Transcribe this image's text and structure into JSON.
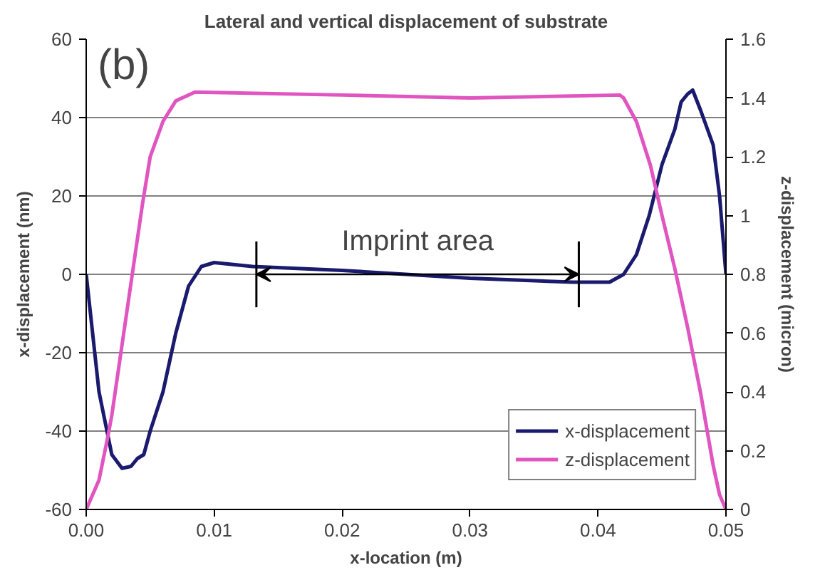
{
  "chart_data": {
    "type": "line",
    "title": "Lateral and vertical displacement of substrate",
    "xlabel": "x-location (m)",
    "ylabel": "x-displacement (nm)",
    "y2label": "z-displacement (micron)",
    "annotations": [
      "(b)",
      "Imprint area"
    ],
    "ref_lines": [
      {
        "axis": "x",
        "value": 0.0133,
        "color": "#000000"
      },
      {
        "axis": "x",
        "value": 0.0385,
        "color": "#000000"
      }
    ],
    "series": [
      {
        "name": "x-displacement",
        "color": "#1a1a6e",
        "x": [
          0,
          0.001,
          0.002,
          0.0028,
          0.0035,
          0.004,
          0.0045,
          0.005,
          0.006,
          0.007,
          0.008,
          0.009,
          0.01,
          0.013,
          0.02,
          0.03,
          0.038,
          0.0409,
          0.042,
          0.043,
          0.044,
          0.045,
          0.046,
          0.0465,
          0.047,
          0.0474,
          0.048,
          0.049,
          0.0495,
          0.05
        ],
        "values": [
          0,
          -30,
          -46,
          -49.5,
          -49,
          -47,
          -46,
          -40,
          -30,
          -15,
          -3,
          2,
          3,
          2,
          1,
          -1,
          -2,
          -2,
          0,
          5,
          15,
          28,
          37,
          44,
          46,
          47,
          42,
          33,
          20,
          0
        ]
      },
      {
        "name": "z-displacement",
        "color": "#e055c0",
        "axis": "y2",
        "x": [
          0,
          0.001,
          0.0017,
          0.002,
          0.003,
          0.0044,
          0.005,
          0.006,
          0.007,
          0.0085,
          0.02,
          0.03,
          0.0417,
          0.042,
          0.043,
          0.0441,
          0.045,
          0.046,
          0.047,
          0.048,
          0.049,
          0.0495,
          0.05
        ],
        "values": [
          0,
          0.1,
          0.25,
          0.32,
          0.62,
          1.04,
          1.2,
          1.32,
          1.39,
          1.42,
          1.41,
          1.4,
          1.41,
          1.4,
          1.32,
          1.17,
          1.0,
          0.82,
          0.62,
          0.4,
          0.15,
          0.05,
          0
        ]
      }
    ],
    "xlim": [
      0,
      0.05
    ],
    "xticks": [
      {
        "value": 0,
        "label": "0.00"
      },
      0.01,
      0.02,
      0.03,
      0.04,
      0.05
    ],
    "ylim": [
      -60,
      60
    ],
    "yticks": [
      -60,
      -40,
      -20,
      0,
      20,
      40,
      60
    ],
    "y2lim": [
      0,
      1.6
    ],
    "y2ticks": [
      0,
      0.2,
      0.4,
      0.6,
      0.8,
      1,
      1.2,
      1.4,
      1.6
    ],
    "grid": "y",
    "legend": "bottom right",
    "marker": "none",
    "line_style": "solid"
  }
}
